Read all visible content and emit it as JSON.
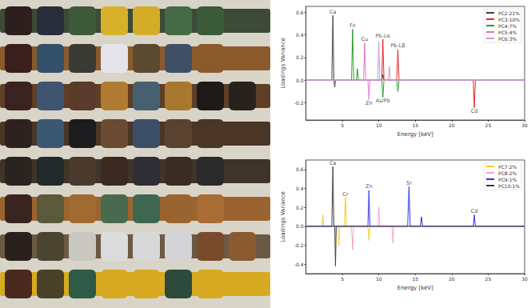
{
  "chart_data": [
    {
      "type": "line",
      "x_label": "Energy [keV]",
      "y_label": "Loadings Variance",
      "xlim": [
        0,
        30
      ],
      "xticks": [
        5,
        10,
        15,
        20,
        25,
        30
      ],
      "ylim": [
        -0.35,
        0.65
      ],
      "yticks": [
        -0.2,
        {
          "value": 0,
          "label": "0.0"
        },
        0.2,
        0.4,
        0.6
      ],
      "grid": false,
      "legend": "upper right",
      "series": [
        {
          "name": "PC2:21%",
          "color": "#404040",
          "x": [
            0,
            3.55,
            3.69,
            3.83,
            3.95,
            4.05,
            10.4,
            10.55,
            10.7,
            30
          ],
          "values": [
            0,
            0,
            0.57,
            0,
            -0.06,
            0,
            0,
            0.05,
            0,
            0
          ]
        },
        {
          "name": "PC3:10%",
          "color": "#e6262b",
          "x": [
            0,
            10.4,
            10.55,
            10.7,
            12.45,
            12.61,
            12.77,
            22.95,
            23.1,
            23.25,
            30
          ],
          "values": [
            0,
            0,
            0.36,
            0,
            0,
            0.27,
            0,
            0,
            -0.24,
            0,
            0
          ]
        },
        {
          "name": "PC4:7%",
          "color": "#2ca02c",
          "x": [
            0,
            6.25,
            6.4,
            6.55,
            6.92,
            7.06,
            7.2,
            10.4,
            10.55,
            10.7,
            12.45,
            12.61,
            12.77,
            30
          ],
          "values": [
            0,
            0,
            0.45,
            0,
            0,
            0.1,
            0,
            0,
            -0.15,
            0,
            0,
            -0.1,
            0,
            0
          ]
        },
        {
          "name": "PC5:4%",
          "color": "#e377c2",
          "x": [
            0,
            7.9,
            8.05,
            8.2,
            8.5,
            8.64,
            8.78,
            30
          ],
          "values": [
            0,
            0,
            0.33,
            0,
            0,
            -0.17,
            0,
            0
          ]
        },
        {
          "name": "PC6:3%",
          "color": "#c39bd3",
          "x": [
            0,
            9.85,
            9.99,
            10.13,
            11.3,
            11.44,
            11.58,
            30
          ],
          "values": [
            0,
            0,
            0.34,
            0,
            0,
            0.12,
            0,
            0
          ]
        }
      ],
      "annotations": [
        {
          "text": "Ca",
          "x": 3.69,
          "y": 0.57
        },
        {
          "text": "Fe",
          "x": 6.4,
          "y": 0.45
        },
        {
          "text": "Cu",
          "x": 8.05,
          "y": 0.33
        },
        {
          "text": "Pb-Lα",
          "x": 10.55,
          "y": 0.36
        },
        {
          "text": "Pb-Lβ",
          "x": 12.61,
          "y": 0.27
        },
        {
          "text": "Zn",
          "x": 8.64,
          "y": -0.17
        },
        {
          "text": "As/Pb",
          "x": 10.55,
          "y": -0.15
        },
        {
          "text": "Cd",
          "x": 23.1,
          "y": -0.24
        }
      ]
    },
    {
      "type": "line",
      "x_label": "Energy [keV]",
      "y_label": "Loadings Variance",
      "xlim": [
        0,
        30
      ],
      "xticks": [
        5,
        10,
        15,
        20,
        25,
        30
      ],
      "ylim": [
        -0.5,
        0.7
      ],
      "yticks": [
        -0.4,
        -0.2,
        {
          "value": 0,
          "label": "0.0"
        },
        0.2,
        0.4,
        0.6
      ],
      "grid": false,
      "legend": "upper right",
      "series": [
        {
          "name": "PC7:2%",
          "color": "#f0cf1a",
          "x": [
            0,
            2.17,
            2.31,
            2.45,
            4.37,
            4.51,
            4.65,
            5.27,
            5.41,
            5.55,
            8.5,
            8.64,
            8.78,
            30
          ],
          "values": [
            0,
            0,
            0.12,
            0,
            0,
            -0.2,
            0,
            0,
            0.3,
            0,
            0,
            -0.15,
            0,
            0
          ]
        },
        {
          "name": "PC8:2%",
          "color": "#f6a5c8",
          "x": [
            0,
            6.25,
            6.4,
            6.55,
            9.85,
            9.99,
            10.13,
            11.8,
            11.93,
            12.06,
            30
          ],
          "values": [
            0,
            0,
            -0.25,
            0,
            0,
            0.2,
            0,
            0,
            -0.18,
            0,
            0
          ]
        },
        {
          "name": "PC9:1%",
          "color": "#3232e6",
          "x": [
            0,
            8.5,
            8.64,
            8.78,
            13.95,
            14.14,
            14.3,
            15.7,
            15.84,
            16,
            22.95,
            23.1,
            23.25,
            30
          ],
          "values": [
            0,
            0,
            0.38,
            0,
            0,
            0.42,
            0,
            0,
            0.1,
            0,
            0,
            0.12,
            0,
            0
          ]
        },
        {
          "name": "PC10:1%",
          "color": "#3a3a3a",
          "x": [
            0,
            3.55,
            3.69,
            3.83,
            3.95,
            4.05,
            4.15,
            30
          ],
          "values": [
            0,
            0,
            0.63,
            0,
            0,
            -0.42,
            0,
            0
          ]
        }
      ],
      "annotations": [
        {
          "text": "Ca",
          "x": 3.69,
          "y": 0.63
        },
        {
          "text": "Cr",
          "x": 5.41,
          "y": 0.3
        },
        {
          "text": "Zn",
          "x": 8.64,
          "y": 0.38
        },
        {
          "text": "Sr",
          "x": 14.14,
          "y": 0.42
        },
        {
          "text": "Cd",
          "x": 23.1,
          "y": 0.12
        }
      ]
    }
  ]
}
